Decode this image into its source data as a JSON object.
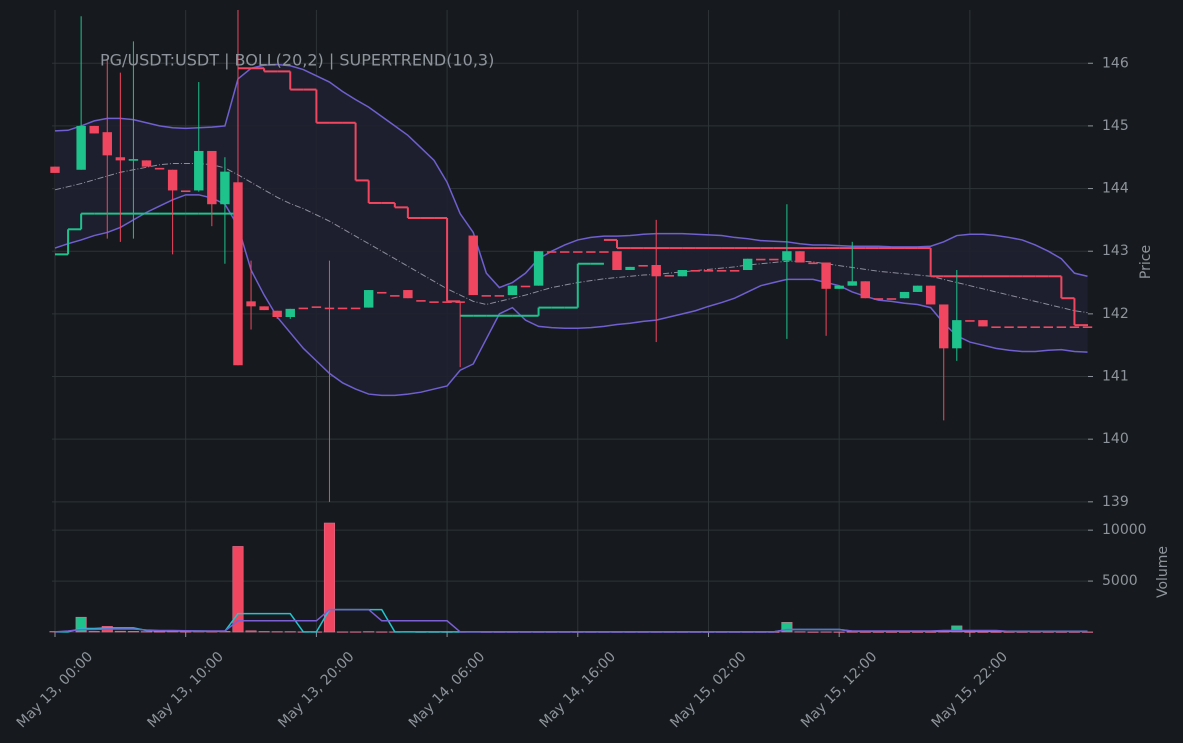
{
  "chart_data": {
    "type": "candlestick",
    "title": "PG/USDT:USDT | BOLL(20,2) | SUPERTREND(10,3)",
    "x": [
      "May 13, 00:00",
      "May 13, 01:00",
      "May 13, 02:00",
      "May 13, 03:00",
      "May 13, 04:00",
      "May 13, 05:00",
      "May 13, 06:00",
      "May 13, 07:00",
      "May 13, 08:00",
      "May 13, 09:00",
      "May 13, 10:00",
      "May 13, 11:00",
      "May 13, 12:00",
      "May 13, 13:00",
      "May 13, 14:00",
      "May 13, 15:00",
      "May 13, 16:00",
      "May 13, 17:00",
      "May 13, 18:00",
      "May 13, 19:00",
      "May 13, 20:00",
      "May 13, 21:00",
      "May 13, 22:00",
      "May 13, 23:00",
      "May 14, 00:00",
      "May 14, 01:00",
      "May 14, 02:00",
      "May 14, 03:00",
      "May 14, 04:00",
      "May 14, 05:00",
      "May 14, 06:00",
      "May 14, 07:00",
      "May 14, 08:00",
      "May 14, 09:00",
      "May 14, 10:00",
      "May 14, 11:00",
      "May 14, 12:00",
      "May 14, 13:00",
      "May 14, 14:00",
      "May 14, 15:00",
      "May 14, 16:00",
      "May 14, 17:00",
      "May 14, 18:00",
      "May 14, 19:00",
      "May 14, 20:00",
      "May 14, 21:00",
      "May 14, 22:00",
      "May 14, 23:00",
      "May 15, 00:00",
      "May 15, 01:00",
      "May 15, 02:00",
      "May 15, 03:00",
      "May 15, 04:00",
      "May 15, 05:00",
      "May 15, 06:00",
      "May 15, 07:00",
      "May 15, 08:00",
      "May 15, 09:00",
      "May 15, 10:00",
      "May 15, 11:00",
      "May 15, 12:00",
      "May 15, 13:00",
      "May 15, 14:00",
      "May 15, 15:00",
      "May 15, 16:00",
      "May 15, 17:00",
      "May 15, 18:00",
      "May 15, 19:00",
      "May 15, 20:00",
      "May 15, 21:00",
      "May 15, 22:00",
      "May 15, 23:00",
      "May 16, 00:00",
      "May 16, 01:00",
      "May 16, 02:00",
      "May 16, 03:00",
      "May 16, 04:00",
      "May 16, 05:00",
      "May 16, 06:00",
      "May 16, 07:00"
    ],
    "xticks": [
      "May 13, 00:00",
      "May 13, 10:00",
      "May 13, 20:00",
      "May 14, 06:00",
      "May 14, 16:00",
      "May 15, 02:00",
      "May 15, 12:00",
      "May 15, 22:00"
    ],
    "open": [
      144.35,
      null,
      144.3,
      145.0,
      144.9,
      144.5,
      144.45,
      144.45,
      144.33,
      144.3,
      143.97,
      143.97,
      144.6,
      143.75,
      144.1,
      142.2,
      142.12,
      142.05,
      141.95,
      142.1,
      142.12,
      142.1,
      142.1,
      142.1,
      142.1,
      142.35,
      142.3,
      142.38,
      142.22,
      142.2,
      142.2,
      142.2,
      143.25,
      142.3,
      142.3,
      142.3,
      142.45,
      142.45,
      143.0,
      143.0,
      143.0,
      143.0,
      143.0,
      143.0,
      142.7,
      142.78,
      142.78,
      142.62,
      142.6,
      142.7,
      142.7,
      142.7,
      142.7,
      142.7,
      142.88,
      142.88,
      142.85,
      143.0,
      142.82,
      142.82,
      142.4,
      142.45,
      142.52,
      142.25,
      142.25,
      142.25,
      142.35,
      142.45,
      142.15,
      141.45,
      141.9,
      141.9,
      141.8,
      141.8,
      141.8,
      141.8,
      141.8,
      141.8,
      141.8,
      141.8
    ],
    "high": [
      144.35,
      null,
      146.75,
      145.0,
      146.05,
      145.85,
      146.35,
      144.45,
      144.33,
      144.3,
      143.97,
      145.7,
      144.6,
      144.5,
      146.85,
      142.85,
      142.12,
      142.05,
      142.08,
      142.1,
      142.12,
      142.85,
      142.1,
      142.1,
      142.38,
      142.35,
      142.3,
      142.38,
      142.22,
      142.2,
      142.2,
      142.2,
      143.25,
      142.3,
      142.3,
      142.45,
      142.45,
      143.0,
      143.0,
      143.0,
      143.0,
      143.0,
      143.0,
      143.0,
      142.75,
      142.78,
      143.5,
      142.62,
      142.7,
      142.7,
      142.7,
      142.7,
      142.7,
      142.88,
      142.88,
      142.88,
      143.75,
      143.0,
      142.82,
      142.82,
      142.45,
      143.15,
      142.52,
      142.25,
      142.25,
      142.35,
      142.45,
      142.45,
      142.15,
      142.7,
      141.9,
      141.9,
      141.8,
      141.8,
      141.8,
      141.8,
      141.8,
      141.8,
      141.8,
      141.8
    ],
    "low": [
      144.25,
      null,
      144.3,
      144.88,
      143.2,
      143.15,
      143.2,
      144.35,
      144.33,
      142.95,
      143.97,
      143.95,
      143.4,
      142.8,
      141.18,
      141.75,
      142.06,
      141.92,
      141.92,
      142.1,
      142.12,
      139.0,
      142.1,
      142.1,
      142.1,
      142.35,
      142.3,
      142.25,
      142.22,
      142.2,
      142.2,
      141.15,
      142.3,
      142.3,
      142.3,
      142.3,
      142.45,
      142.45,
      143.0,
      143.0,
      143.0,
      143.0,
      143.0,
      142.7,
      142.7,
      142.78,
      141.55,
      142.62,
      142.6,
      142.7,
      142.7,
      142.7,
      142.7,
      142.7,
      142.88,
      142.88,
      141.6,
      142.82,
      142.82,
      141.65,
      142.4,
      142.45,
      142.25,
      142.25,
      142.25,
      142.25,
      142.35,
      142.15,
      140.3,
      141.25,
      141.9,
      141.8,
      141.8,
      141.8,
      141.8,
      141.8,
      141.8,
      141.8,
      141.8,
      141.8
    ],
    "close": [
      144.25,
      null,
      145.0,
      144.88,
      144.53,
      144.45,
      144.47,
      144.35,
      144.33,
      143.97,
      143.97,
      144.6,
      143.75,
      144.27,
      141.18,
      142.12,
      142.06,
      141.95,
      142.08,
      142.1,
      142.12,
      142.1,
      142.1,
      142.1,
      142.38,
      142.35,
      142.3,
      142.25,
      142.22,
      142.2,
      142.2,
      142.18,
      142.3,
      142.3,
      142.3,
      142.45,
      142.45,
      143.0,
      143.0,
      143.0,
      143.0,
      143.0,
      143.0,
      142.7,
      142.75,
      142.78,
      142.6,
      142.62,
      142.7,
      142.7,
      142.7,
      142.7,
      142.7,
      142.88,
      142.88,
      142.88,
      143.0,
      142.82,
      142.82,
      142.4,
      142.45,
      142.52,
      142.25,
      142.25,
      142.25,
      142.35,
      142.45,
      142.15,
      141.45,
      141.9,
      141.9,
      141.8,
      141.8,
      141.8,
      141.8,
      141.8,
      141.8,
      141.8,
      141.8,
      141.8
    ],
    "up_color": "#1ec28b",
    "down_color": "#f0465f",
    "ylim": [
      138.71,
      146.85
    ],
    "yticks": [
      139,
      140,
      141,
      142,
      143,
      144,
      145,
      146
    ],
    "ylabel": "Price",
    "grid": true,
    "bollinger": {
      "color": "#6f5fcf",
      "middle_color": "#8c8c9c",
      "fill": "#1f2030",
      "upper": [
        144.92,
        144.93,
        145.0,
        145.08,
        145.12,
        145.12,
        145.1,
        145.05,
        145.0,
        144.97,
        144.96,
        144.97,
        144.98,
        145.0,
        145.75,
        145.92,
        145.97,
        145.98,
        145.96,
        145.9,
        145.8,
        145.7,
        145.55,
        145.42,
        145.3,
        145.15,
        145.0,
        144.85,
        144.65,
        144.45,
        144.1,
        143.6,
        143.3,
        142.65,
        142.42,
        142.5,
        142.65,
        142.88,
        143.0,
        143.1,
        143.18,
        143.22,
        143.24,
        143.24,
        143.25,
        143.27,
        143.28,
        143.28,
        143.28,
        143.27,
        143.26,
        143.25,
        143.22,
        143.2,
        143.17,
        143.16,
        143.15,
        143.12,
        143.1,
        143.1,
        143.09,
        143.08,
        143.08,
        143.08,
        143.07,
        143.07,
        143.07,
        143.08,
        143.15,
        143.25,
        143.27,
        143.27,
        143.25,
        143.22,
        143.18,
        143.1,
        143.0,
        142.88,
        142.65,
        142.6
      ],
      "middle": [
        143.98,
        144.03,
        144.08,
        144.14,
        144.2,
        144.26,
        144.3,
        144.34,
        144.38,
        144.4,
        144.4,
        144.4,
        144.38,
        144.33,
        144.22,
        144.1,
        143.98,
        143.86,
        143.76,
        143.68,
        143.58,
        143.48,
        143.36,
        143.24,
        143.12,
        143.0,
        142.88,
        142.76,
        142.64,
        142.52,
        142.4,
        142.3,
        142.2,
        142.15,
        142.2,
        142.25,
        142.3,
        142.36,
        142.42,
        142.46,
        142.5,
        142.53,
        142.56,
        142.58,
        142.6,
        142.62,
        142.63,
        142.65,
        142.67,
        142.69,
        142.71,
        142.73,
        142.75,
        142.78,
        142.8,
        142.82,
        142.84,
        142.84,
        142.83,
        142.8,
        142.77,
        142.74,
        142.71,
        142.68,
        142.66,
        142.64,
        142.62,
        142.6,
        142.55,
        142.5,
        142.45,
        142.4,
        142.35,
        142.3,
        142.25,
        142.2,
        142.15,
        142.1,
        142.05,
        142.02
      ],
      "lower": [
        143.05,
        143.12,
        143.18,
        143.25,
        143.3,
        143.38,
        143.5,
        143.62,
        143.72,
        143.82,
        143.9,
        143.9,
        143.85,
        143.75,
        143.4,
        142.7,
        142.3,
        141.95,
        141.7,
        141.45,
        141.25,
        141.05,
        140.9,
        140.8,
        140.72,
        140.7,
        140.7,
        140.72,
        140.75,
        140.8,
        140.85,
        141.1,
        141.2,
        141.6,
        142.0,
        142.1,
        141.9,
        141.8,
        141.78,
        141.77,
        141.77,
        141.78,
        141.8,
        141.83,
        141.85,
        141.88,
        141.9,
        141.95,
        142.0,
        142.05,
        142.12,
        142.18,
        142.25,
        142.35,
        142.45,
        142.5,
        142.55,
        142.55,
        142.55,
        142.5,
        142.45,
        142.35,
        142.28,
        142.22,
        142.2,
        142.17,
        142.15,
        142.1,
        141.85,
        141.65,
        141.55,
        141.5,
        141.45,
        141.42,
        141.4,
        141.4,
        141.42,
        141.43,
        141.4,
        141.39
      ]
    },
    "supertrend": [
      {
        "color": "#1ec28b",
        "values": [
          142.95,
          143.35,
          143.6,
          143.6,
          143.6,
          143.6,
          143.6,
          143.6,
          143.6,
          143.6,
          143.6,
          143.6,
          143.6,
          143.6,
          null,
          null,
          null,
          null,
          null,
          null,
          null,
          null,
          null,
          null,
          null,
          null,
          null,
          null,
          null,
          null,
          null,
          141.97,
          141.97,
          141.97,
          141.97,
          141.97,
          141.97,
          142.1,
          142.1,
          142.1,
          142.8,
          142.8,
          null,
          null,
          null,
          null,
          null,
          null,
          null,
          null,
          null,
          null,
          null,
          null,
          null,
          null,
          null,
          null,
          null,
          null,
          null,
          null,
          null,
          null,
          null,
          null,
          null,
          null,
          null,
          null,
          null,
          null,
          null,
          null,
          null,
          null,
          null,
          null,
          null,
          null
        ]
      },
      {
        "color": "#f0465f",
        "values": [
          null,
          null,
          null,
          null,
          null,
          null,
          null,
          null,
          null,
          null,
          null,
          null,
          null,
          null,
          145.92,
          145.92,
          145.87,
          145.87,
          145.58,
          145.58,
          145.05,
          145.05,
          145.05,
          144.13,
          143.77,
          143.77,
          143.7,
          143.53,
          143.53,
          143.53,
          142.2,
          null,
          null,
          null,
          null,
          null,
          null,
          null,
          null,
          null,
          null,
          null,
          143.18,
          143.05,
          143.05,
          143.05,
          143.05,
          143.05,
          143.05,
          143.05,
          143.05,
          143.05,
          143.05,
          143.05,
          143.05,
          143.05,
          143.05,
          143.05,
          143.05,
          143.05,
          143.05,
          143.05,
          143.05,
          143.05,
          143.05,
          143.05,
          143.05,
          142.6,
          142.6,
          142.6,
          142.6,
          142.6,
          142.6,
          142.6,
          142.6,
          142.6,
          142.6,
          142.25,
          141.82,
          141.82
        ]
      }
    ],
    "volume": {
      "ylabel": "Volume",
      "ylim": [
        0,
        10800
      ],
      "yticks": [
        5000,
        10000
      ],
      "values": [
        50,
        null,
        1450,
        60,
        550,
        80,
        60,
        40,
        30,
        60,
        30,
        50,
        40,
        60,
        8400,
        120,
        50,
        40,
        40,
        20,
        20,
        10700,
        20,
        20,
        40,
        20,
        20,
        30,
        10,
        10,
        10,
        20,
        30,
        10,
        10,
        10,
        10,
        10,
        10,
        10,
        10,
        10,
        10,
        10,
        10,
        10,
        10,
        10,
        10,
        10,
        10,
        10,
        10,
        10,
        10,
        10,
        950,
        30,
        10,
        20,
        10,
        20,
        10,
        10,
        10,
        10,
        10,
        10,
        30,
        600,
        10,
        10,
        10,
        10,
        10,
        10,
        10,
        10,
        10,
        10
      ],
      "lines": [
        {
          "color": "#21c4cc",
          "values": [
            10,
            10,
            350,
            350,
            400,
            400,
            400,
            150,
            100,
            100,
            100,
            100,
            80,
            80,
            1800,
            1800,
            1800,
            1800,
            1800,
            10,
            10,
            2200,
            2200,
            2200,
            2200,
            2200,
            10,
            10,
            10,
            10,
            10,
            10,
            10,
            10,
            10,
            10,
            10,
            10,
            10,
            10,
            10,
            10,
            10,
            10,
            10,
            10,
            10,
            10,
            10,
            10,
            10,
            10,
            10,
            10,
            10,
            10,
            250,
            250,
            250,
            250,
            250,
            80,
            80,
            80,
            80,
            80,
            80,
            80,
            80,
            80,
            80,
            80,
            80,
            80,
            80,
            80,
            80,
            80,
            80,
            80
          ]
        },
        {
          "color": "#7b5fd4",
          "values": [
            10,
            100,
            250,
            250,
            300,
            300,
            300,
            200,
            150,
            150,
            120,
            100,
            100,
            100,
            1100,
            1100,
            1100,
            1100,
            1100,
            1100,
            1100,
            2200,
            2200,
            2200,
            2200,
            1100,
            1100,
            1100,
            1100,
            1100,
            1100,
            10,
            10,
            10,
            10,
            10,
            10,
            10,
            10,
            10,
            10,
            10,
            10,
            10,
            10,
            10,
            10,
            10,
            10,
            10,
            10,
            10,
            10,
            10,
            10,
            10,
            250,
            250,
            250,
            250,
            250,
            100,
            100,
            100,
            100,
            100,
            100,
            100,
            150,
            150,
            150,
            150,
            150,
            60,
            60,
            60,
            60,
            60,
            60,
            60
          ]
        }
      ]
    }
  }
}
